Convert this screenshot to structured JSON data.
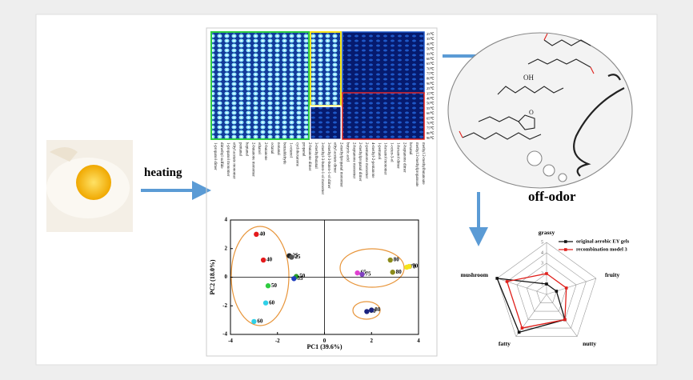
{
  "labels": {
    "heating": "heating",
    "off_odor": "off-odor"
  },
  "heatmap": {
    "row_labels": [
      "25℃",
      "35℃",
      "40℃",
      "50℃",
      "55℃",
      "60℃",
      "65℃",
      "70℃",
      "75℃",
      "80℃",
      "90℃",
      "25℃",
      "35℃",
      "40℃",
      "50℃",
      "55℃",
      "60℃",
      "65℃",
      "70℃",
      "75℃",
      "80℃",
      "90℃"
    ],
    "column_labels": [
      "1-propanol dimer",
      "dimethyl sulfide",
      "1-propanol monomer",
      "ethyl acetate monomer",
      "pentanal",
      "heptanal",
      "2-butanone monomer",
      "ethanol",
      "2-butanone",
      "octanal",
      "nonanal",
      "benzaldehyde",
      "1-octanol",
      "cyclohexanone",
      "propanal",
      "2-butanone dimer",
      "3-methylbutanal",
      "3-methyl-3-buten-1-ol monomer",
      "3-methyl-3-buten-1-ol dimer",
      "ethyl acetate dimer",
      "2-methylpropanal monomer",
      "butyric acid",
      "2-heptanone monomer",
      "2-methylpropanal dimer",
      "2-pentanone monomer",
      "4-methyl-2-pentanone",
      "1-pentanol",
      "1-hexanol monomer",
      "1-octen-3-ol",
      "1-hexanol dimer",
      "2-heptanone dimer",
      "hexanal",
      "methyl 2-methylpropanoate",
      "methyl 2-methylbutanoate"
    ]
  },
  "chart_data": [
    {
      "type": "scatter",
      "xlabel": "PC1 (39.6%)",
      "ylabel": "PC2 (18.0%)",
      "xlim": [
        -4,
        4
      ],
      "ylim": [
        -4,
        4
      ],
      "xticks": [
        -4,
        -2,
        0,
        2,
        4
      ],
      "yticks": [
        -4,
        -2,
        0,
        2,
        4
      ],
      "x": [
        -2.9,
        -2.6,
        -1.5,
        -1.4,
        -1.2,
        -1.3,
        -2.4,
        -2.5,
        -3.0,
        2.8,
        2.9,
        3.5,
        3.6,
        1.4,
        1.6,
        1.8,
        2.0
      ],
      "values": [
        3.0,
        1.2,
        1.5,
        1.4,
        0.05,
        -0.1,
        -0.6,
        -1.8,
        -3.1,
        1.2,
        0.35,
        0.7,
        0.75,
        0.3,
        0.2,
        -2.4,
        -2.3
      ],
      "colors": [
        "#e41a1c",
        "#e41a1c",
        "#222222",
        "#555555",
        "#2a9d2a",
        "#1f3fbf",
        "#2ecc40",
        "#2fd0e8",
        "#2fd0e8",
        "#8b8b1a",
        "#8b8b1a",
        "#f5e31a",
        "#f5e31a",
        "#e040d0",
        "#8040c0",
        "#1a237e",
        "#1a237e"
      ],
      "point_labels": [
        "40",
        "40",
        "25",
        "25",
        "50",
        "55",
        "50",
        "60",
        "60",
        "80",
        "80",
        "70",
        "70",
        "65",
        "75",
        "90",
        "80"
      ]
    },
    {
      "type": "radar",
      "categories": [
        "grassy",
        "fruity",
        "nutty",
        "fatty",
        "mushroom"
      ],
      "rlim": [
        0,
        5
      ],
      "rticks": [
        1,
        2,
        3,
        4,
        5
      ],
      "series": [
        {
          "name": "original  aerobic EY gels",
          "color": "#111111",
          "values": [
            1,
            1,
            3,
            4.5,
            5
          ]
        },
        {
          "name": "recombination model 3",
          "color": "#e0201c",
          "values": [
            2,
            2,
            3,
            4,
            4
          ]
        }
      ]
    }
  ]
}
